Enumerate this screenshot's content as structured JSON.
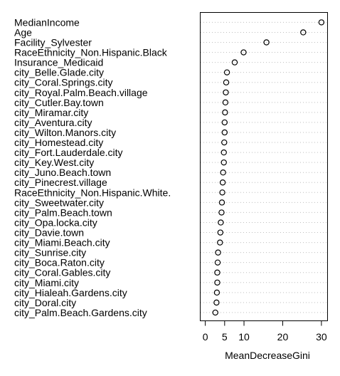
{
  "chart_data": {
    "type": "scatter",
    "title": "",
    "xlabel": "MeanDecreaseGini",
    "ylabel": "",
    "xlim": [
      -1.5,
      31.5
    ],
    "xticks": [
      0,
      5,
      10,
      20,
      30
    ],
    "grid": "dotted horizontal guide lines per variable",
    "categories": [
      "MedianIncome",
      "Age",
      "Facility_Sylvester",
      "RaceEthnicity_Non.Hispanic.Black",
      "Insurance_Medicaid",
      "city_Belle.Glade.city",
      "city_Coral.Springs.city",
      "city_Royal.Palm.Beach.village",
      "city_Cutler.Bay.town",
      "city_Miramar.city",
      "city_Aventura.city",
      "city_Wilton.Manors.city",
      "city_Homestead.city",
      "city_Fort.Lauderdale.city",
      "city_Key.West.city",
      "city_Juno.Beach.town",
      "city_Pinecrest.village",
      "RaceEthnicity_Non.Hispanic.White.",
      "city_Sweetwater.city",
      "city_Palm.Beach.town",
      "city_Opa.locka.city",
      "city_Davie.town",
      "city_Miami.Beach.city",
      "city_Sunrise.city",
      "city_Boca.Raton.city",
      "city_Coral.Gables.city",
      "city_Miami.city",
      "city_Hialeah.Gardens.city",
      "city_Doral.city",
      "city_Palm.Beach.Gardens.city"
    ],
    "values": [
      30.0,
      25.3,
      15.8,
      9.9,
      7.6,
      5.6,
      5.4,
      5.3,
      5.2,
      5.1,
      5.0,
      5.0,
      4.9,
      4.8,
      4.8,
      4.6,
      4.5,
      4.4,
      4.3,
      4.2,
      4.0,
      3.9,
      3.8,
      3.3,
      3.2,
      3.1,
      3.1,
      3.0,
      2.9,
      2.6
    ]
  }
}
